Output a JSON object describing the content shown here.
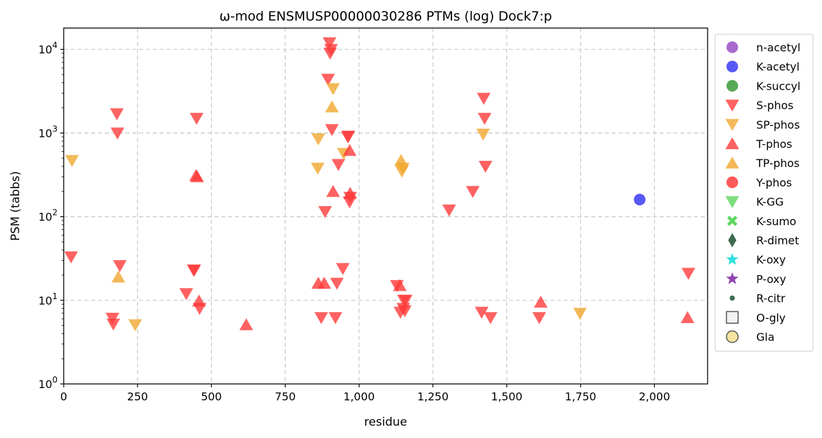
{
  "chart_data": {
    "type": "scatter",
    "title": "ω-mod ENSMUSP00000030286 PTMs (log) Dock7:p",
    "xlabel": "residue",
    "ylabel": "PSM (tabbs)",
    "xlim": [
      0,
      2180
    ],
    "ylim": [
      1,
      18000
    ],
    "yscale": "log",
    "grid": true,
    "legend_position": "right-outside",
    "x_ticks": [
      0,
      250,
      500,
      750,
      1000,
      1250,
      1500,
      1750,
      2000
    ],
    "x_tick_labels": [
      "0",
      "250",
      "500",
      "750",
      "1,000",
      "1,250",
      "1,500",
      "1,750",
      "2,000"
    ],
    "y_ticks": [
      1,
      10,
      100,
      1000,
      10000
    ],
    "y_tick_labels": [
      {
        "base": "10",
        "exp": "0"
      },
      {
        "base": "10",
        "exp": "1"
      },
      {
        "base": "10",
        "exp": "2"
      },
      {
        "base": "10",
        "exp": "3"
      },
      {
        "base": "10",
        "exp": "4"
      }
    ],
    "series": [
      {
        "name": "n-acetyl",
        "marker": "circle",
        "color": "#9a4fc4",
        "points": []
      },
      {
        "name": "K-acetyl",
        "marker": "circle",
        "color": "#3b3bf5",
        "points": [
          [
            1950,
            160
          ]
        ]
      },
      {
        "name": "K-succyl",
        "marker": "circle",
        "color": "#3a9a3a",
        "points": []
      },
      {
        "name": "S-phos",
        "marker": "triangle-down",
        "color": "#ff3b3b",
        "points": [
          [
            25,
            33
          ],
          [
            165,
            6.1
          ],
          [
            168,
            5.2
          ],
          [
            180,
            1700
          ],
          [
            182,
            1000
          ],
          [
            190,
            26
          ],
          [
            415,
            12
          ],
          [
            440,
            23
          ],
          [
            442,
            23
          ],
          [
            450,
            1500
          ],
          [
            460,
            8
          ],
          [
            872,
            6.2
          ],
          [
            885,
            115
          ],
          [
            895,
            4400
          ],
          [
            900,
            12000
          ],
          [
            902,
            9000
          ],
          [
            905,
            10000
          ],
          [
            908,
            1100
          ],
          [
            920,
            6.2
          ],
          [
            925,
            16
          ],
          [
            930,
            420
          ],
          [
            945,
            24
          ],
          [
            962,
            900
          ],
          [
            964,
            920
          ],
          [
            968,
            150
          ],
          [
            970,
            170
          ],
          [
            1128,
            15
          ],
          [
            1140,
            7.2
          ],
          [
            1150,
            8
          ],
          [
            1152,
            10
          ],
          [
            1155,
            7.5
          ],
          [
            1158,
            10
          ],
          [
            1305,
            120
          ],
          [
            1385,
            200
          ],
          [
            1415,
            7.2
          ],
          [
            1422,
            2600
          ],
          [
            1425,
            1500
          ],
          [
            1428,
            400
          ],
          [
            1445,
            6.2
          ],
          [
            1610,
            6.2
          ],
          [
            2115,
            21
          ]
        ]
      },
      {
        "name": "SP-phos",
        "marker": "triangle-down",
        "color": "#f0a830",
        "points": [
          [
            28,
            470
          ],
          [
            242,
            5.1
          ],
          [
            860,
            380
          ],
          [
            862,
            850
          ],
          [
            912,
            3400
          ],
          [
            948,
            570
          ],
          [
            1145,
            350
          ],
          [
            1148,
            380
          ],
          [
            1420,
            970
          ],
          [
            1748,
            7
          ]
        ]
      },
      {
        "name": "T-phos",
        "marker": "triangle-up",
        "color": "#ff3b3b",
        "points": [
          [
            448,
            310
          ],
          [
            452,
            300
          ],
          [
            458,
            9.8
          ],
          [
            618,
            5.1
          ],
          [
            862,
            16
          ],
          [
            882,
            16
          ],
          [
            912,
            200
          ],
          [
            968,
            620
          ],
          [
            970,
            190
          ],
          [
            1138,
            15
          ],
          [
            1615,
            9.5
          ],
          [
            2112,
            6.2
          ]
        ]
      },
      {
        "name": "TP-phos",
        "marker": "triangle-up",
        "color": "#f0a830",
        "points": [
          [
            185,
            19
          ],
          [
            908,
            2050
          ],
          [
            1142,
            470
          ]
        ]
      },
      {
        "name": "Y-phos",
        "marker": "circle",
        "color": "#ff3b3b",
        "points": []
      },
      {
        "name": "K-GG",
        "marker": "triangle-down",
        "color": "#5cd65c",
        "points": []
      },
      {
        "name": "K-sumo",
        "marker": "x",
        "color": "#5cd65c",
        "points": []
      },
      {
        "name": "R-dimet",
        "marker": "diamond",
        "color": "#3d6b50",
        "points": []
      },
      {
        "name": "K-oxy",
        "marker": "star",
        "color": "#30e0e0",
        "points": []
      },
      {
        "name": "P-oxy",
        "marker": "star",
        "color": "#8e44ad",
        "points": []
      },
      {
        "name": "R-citr",
        "marker": "small-circle",
        "color": "#3d6b50",
        "points": []
      },
      {
        "name": "O-gly",
        "marker": "square-open",
        "color": "#555555",
        "points": []
      },
      {
        "name": "Gla",
        "marker": "circle-open",
        "color": "#f5e3a0",
        "points": []
      }
    ]
  }
}
